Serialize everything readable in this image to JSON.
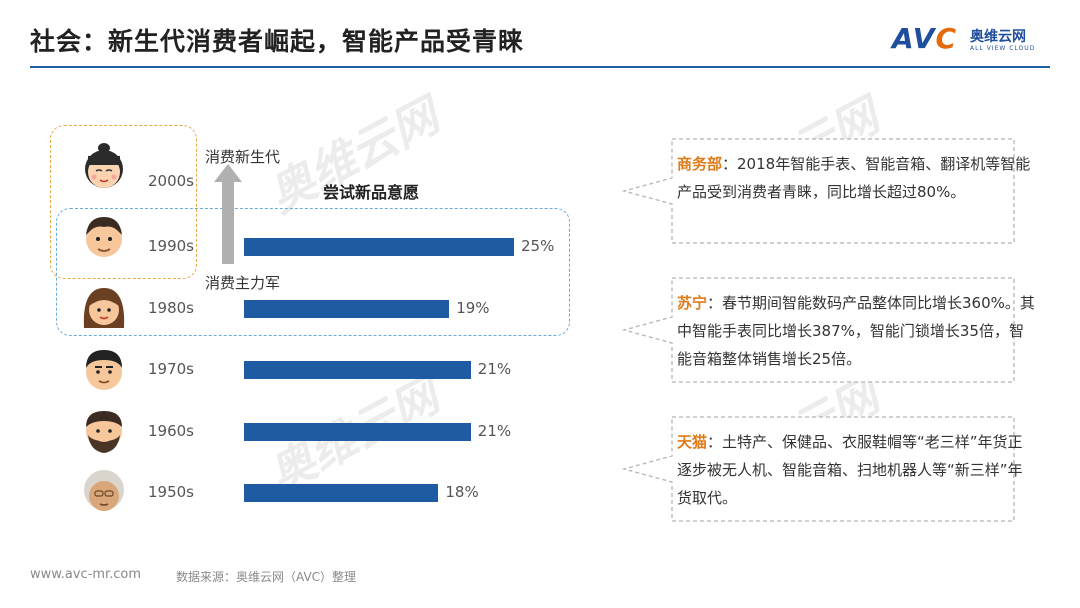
{
  "header": {
    "title": "社会：新生代消费者崛起，智能产品受青睐",
    "logo_main": "AVC",
    "logo_cn": "奥维云网",
    "logo_en": "ALL VIEW CLOUD"
  },
  "watermark": {
    "cn": "奥维云网",
    "en": "ALL VIEW CLOUD"
  },
  "arrow": {
    "new_gen_label": "消费新生代",
    "main_force_label": "消费主力军"
  },
  "chart_data": {
    "type": "bar",
    "orientation": "horizontal",
    "title": "尝试新品意愿",
    "categories": [
      "2000s",
      "1990s",
      "1980s",
      "1970s",
      "1960s",
      "1950s"
    ],
    "values": [
      null,
      25,
      19,
      21,
      21,
      18
    ],
    "value_labels": [
      "",
      "25%",
      "19%",
      "21%",
      "21%",
      "18%"
    ],
    "unit": "%",
    "xlim": [
      0,
      25
    ],
    "bar_color": "#1f5ba3"
  },
  "faces": [
    {
      "decade": "2000s",
      "icon": "child-face-icon"
    },
    {
      "decade": "1990s",
      "icon": "young-man-face-icon"
    },
    {
      "decade": "1980s",
      "icon": "woman-face-icon"
    },
    {
      "decade": "1970s",
      "icon": "man-face-icon"
    },
    {
      "decade": "1960s",
      "icon": "bearded-man-face-icon"
    },
    {
      "decade": "1950s",
      "icon": "elderly-face-icon"
    }
  ],
  "panels": [
    {
      "source": "商务部",
      "text": "：2018年智能手表、智能音箱、翻译机等智能产品受到消费者青睐，同比增长超过80%。"
    },
    {
      "source": "苏宁",
      "text": "：春节期间智能数码产品整体同比增长360%。其中智能手表同比增长387%，智能门锁增长35倍，智能音箱整体销售增长25倍。"
    },
    {
      "source": "天猫",
      "text": "：土特产、保健品、衣服鞋帽等“老三样”年货正逐步被无人机、智能音箱、扫地机器人等“新三样”年货取代。"
    }
  ],
  "footer": {
    "url": "www.avc-mr.com",
    "source": "数据来源：奥维云网（AVC）整理"
  },
  "colors": {
    "accent_blue": "#1f5ba3",
    "accent_orange": "#e07b1a",
    "header_line": "#1f5fa8"
  }
}
